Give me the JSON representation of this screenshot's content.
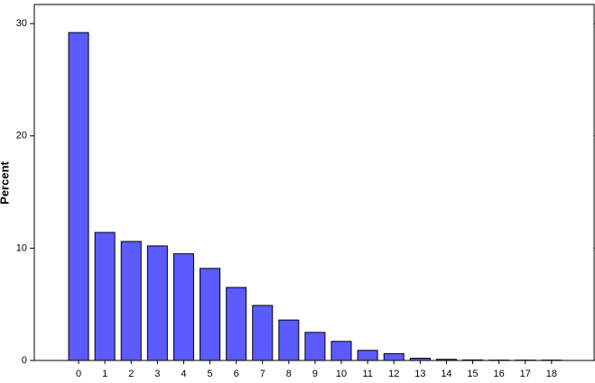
{
  "chart_data": {
    "type": "bar",
    "y_label": "Percent",
    "categories": [
      "0",
      "1",
      "2",
      "3",
      "4",
      "5",
      "6",
      "7",
      "8",
      "9",
      "10",
      "11",
      "12",
      "13",
      "14",
      "15",
      "16",
      "17",
      "18"
    ],
    "values": [
      29.2,
      11.4,
      10.6,
      10.2,
      9.5,
      8.2,
      6.5,
      4.9,
      3.6,
      2.5,
      1.7,
      0.9,
      0.6,
      0.2,
      0.1,
      0.05,
      0.03,
      0.03,
      0.03
    ],
    "color": "#5b5bff",
    "ylim": [
      0,
      31.7
    ],
    "yticks": [
      0,
      10,
      20,
      30
    ]
  }
}
